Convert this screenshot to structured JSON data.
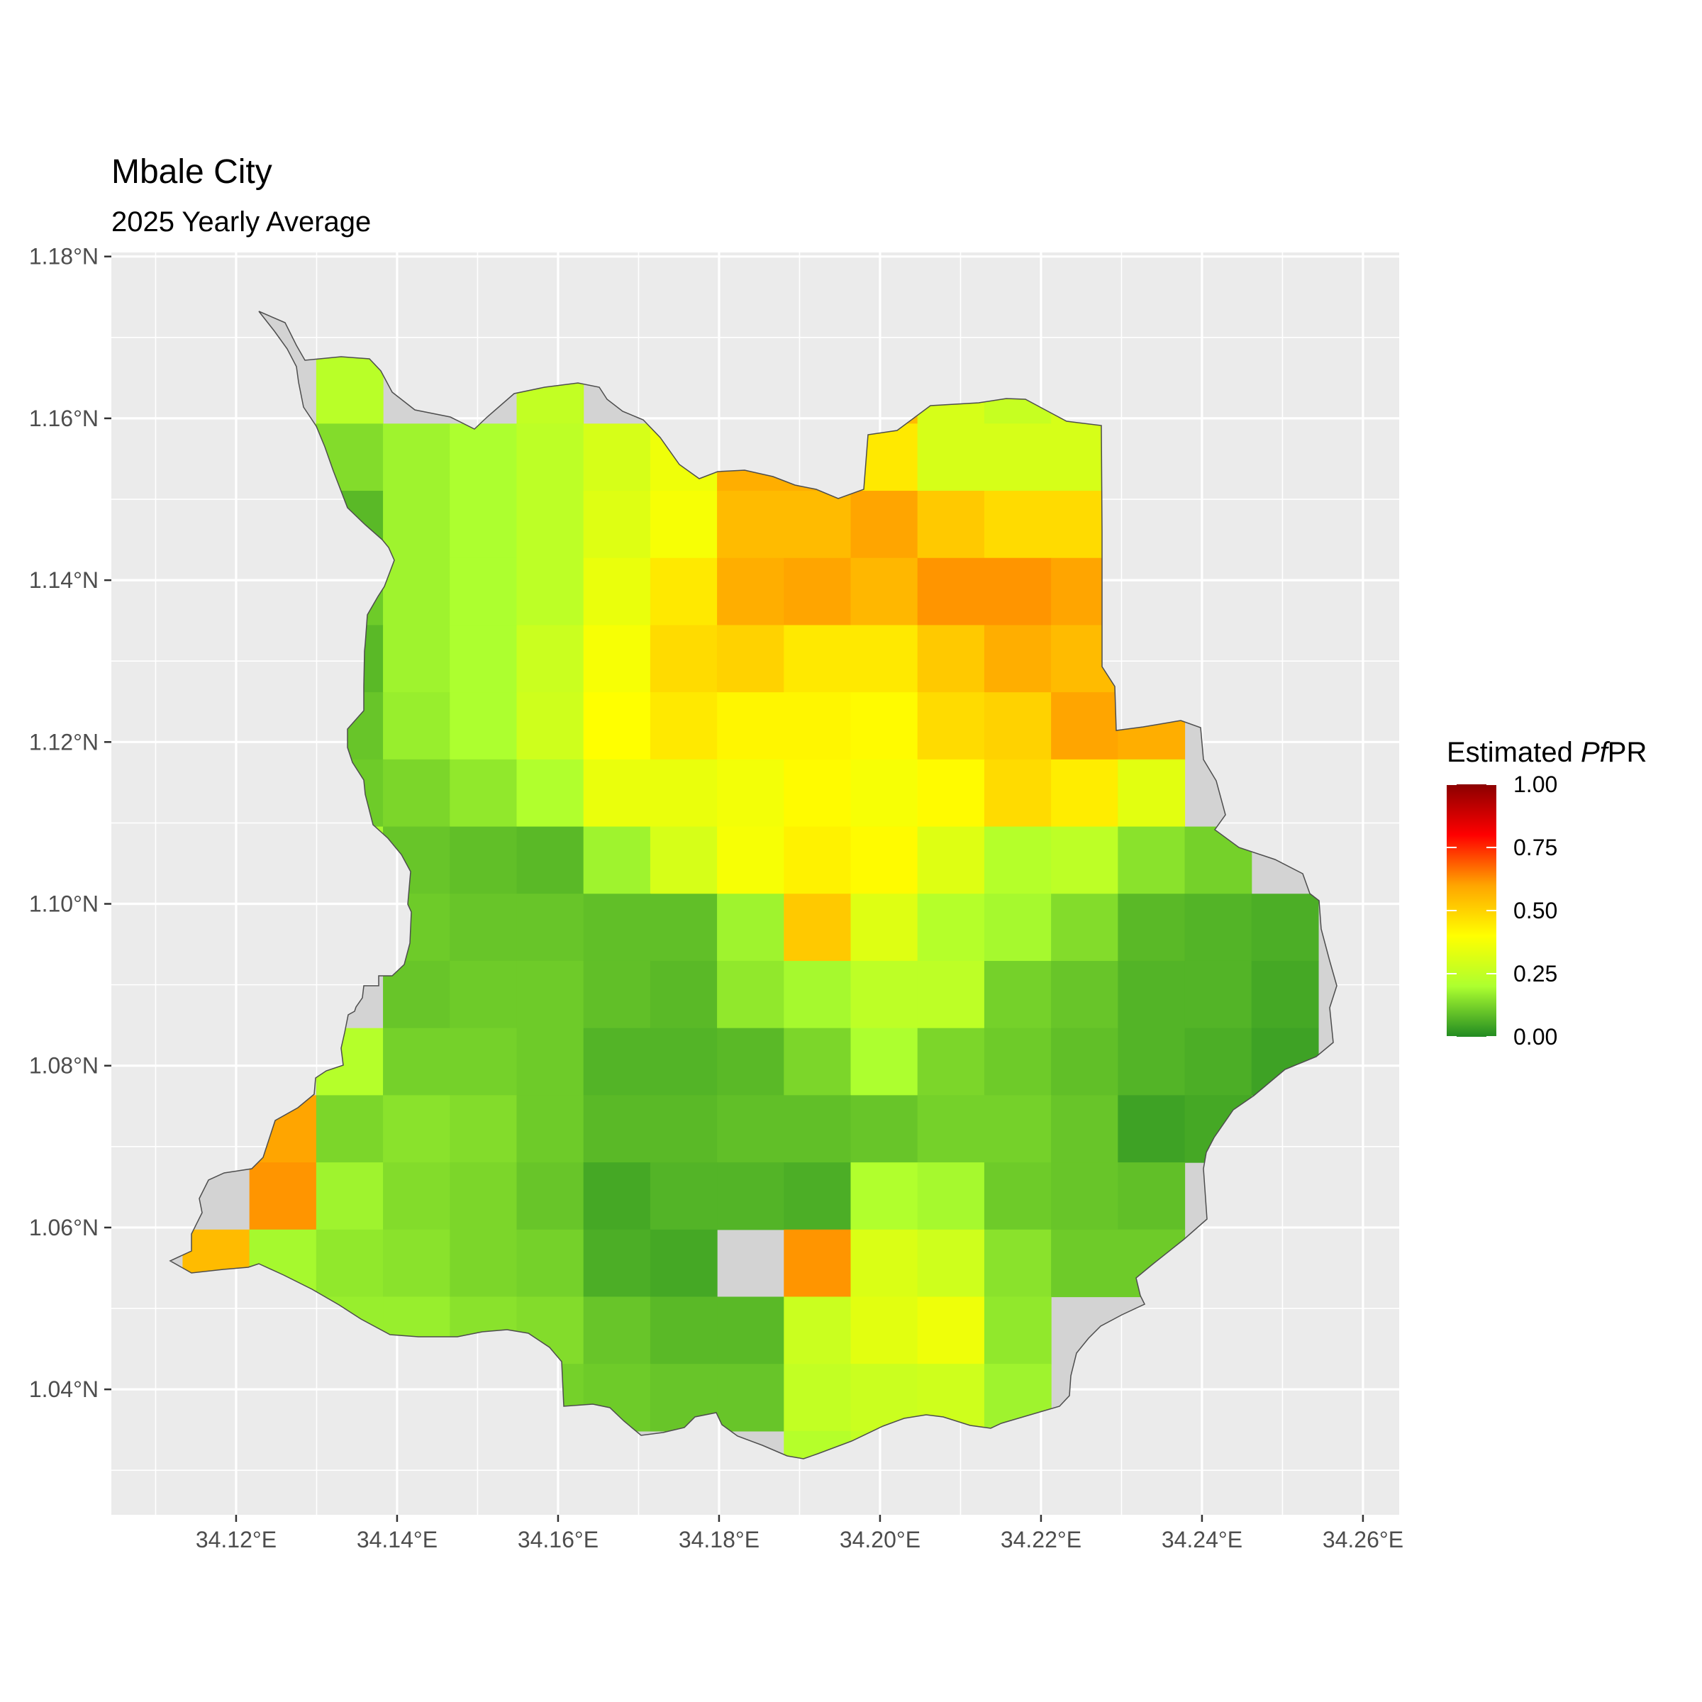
{
  "title": "Mbale City",
  "subtitle": "2025 Yearly Average",
  "legend": {
    "title_prefix": "Estimated ",
    "title_italic": "Pf",
    "title_suffix": "PR",
    "ticks": [
      "1.00",
      "0.75",
      "0.50",
      "0.25",
      "0.00"
    ],
    "colors": [
      "#228B22",
      "#ADFF2F",
      "#FFFF00",
      "#FFA500",
      "#FF0000",
      "#8B0000"
    ]
  },
  "colors": {
    "panel": "#EBEBEB",
    "grid": "#FFFFFF",
    "no_data": "#D3D3D3",
    "outline": "#4D4D4D"
  },
  "axes": {
    "x_ticks": [
      "34.12°E",
      "34.14°E",
      "34.16°E",
      "34.18°E",
      "34.20°E",
      "34.22°E",
      "34.24°E",
      "34.26°E"
    ],
    "y_ticks": [
      "1.18°N",
      "1.16°N",
      "1.14°N",
      "1.12°N",
      "1.10°N",
      "1.08°N",
      "1.06°N",
      "1.04°N"
    ]
  },
  "chart_data": {
    "type": "heatmap",
    "value_name": "Estimated PfPR",
    "color_range": [
      0,
      1
    ],
    "xlim": [
      34.1045,
      34.2645
    ],
    "ylim": [
      1.0245,
      1.1805
    ],
    "cell_size": 0.0083,
    "col_x0": 34.1175,
    "row_y0": 1.1635,
    "cells": [
      [
        null,
        null,
        0.23,
        null,
        null,
        0.25,
        null,
        null,
        null,
        null,
        0.55,
        0.3,
        0.26,
        0.3,
        null,
        null,
        null
      ],
      [
        null,
        0.24,
        0.14,
        0.18,
        0.2,
        0.24,
        0.3,
        0.36,
        0.58,
        0.58,
        0.45,
        0.3,
        0.3,
        0.3,
        null,
        null,
        null
      ],
      [
        null,
        null,
        0.08,
        0.18,
        0.2,
        0.24,
        0.32,
        0.38,
        0.55,
        0.55,
        0.6,
        0.52,
        0.48,
        0.48,
        null,
        null,
        null
      ],
      [
        null,
        null,
        0.11,
        0.18,
        0.2,
        0.24,
        0.35,
        0.45,
        0.58,
        0.6,
        0.56,
        0.62,
        0.62,
        0.6,
        null,
        null,
        null
      ],
      [
        null,
        null,
        0.08,
        0.18,
        0.2,
        0.27,
        0.38,
        0.48,
        0.5,
        0.45,
        0.45,
        0.52,
        0.58,
        0.55,
        null,
        null,
        null
      ],
      [
        null,
        null,
        0.1,
        0.17,
        0.2,
        0.28,
        0.4,
        0.45,
        0.42,
        0.42,
        0.41,
        0.48,
        0.5,
        0.6,
        0.58,
        null,
        null
      ],
      [
        null,
        null,
        0.11,
        0.13,
        0.16,
        0.21,
        0.35,
        0.35,
        0.37,
        0.41,
        0.38,
        0.41,
        0.48,
        0.44,
        0.33,
        null,
        null
      ],
      [
        null,
        null,
        0.19,
        0.1,
        0.09,
        0.08,
        0.18,
        0.3,
        0.38,
        0.43,
        0.41,
        0.32,
        0.22,
        0.24,
        0.15,
        0.12,
        null
      ],
      [
        null,
        null,
        null,
        0.11,
        0.1,
        0.1,
        0.09,
        0.09,
        0.18,
        0.52,
        0.32,
        0.22,
        0.19,
        0.14,
        0.08,
        0.07,
        0.06
      ],
      [
        null,
        null,
        null,
        0.1,
        0.11,
        0.11,
        0.09,
        0.08,
        0.16,
        0.19,
        0.24,
        0.24,
        0.12,
        0.1,
        0.07,
        0.07,
        0.05
      ],
      [
        null,
        null,
        0.22,
        0.12,
        0.12,
        0.11,
        0.07,
        0.07,
        0.08,
        0.13,
        0.2,
        0.13,
        0.11,
        0.09,
        0.07,
        0.06,
        0.04
      ],
      [
        null,
        0.6,
        0.13,
        0.15,
        0.14,
        0.11,
        0.08,
        0.08,
        0.09,
        0.09,
        0.1,
        0.12,
        0.12,
        0.1,
        0.04,
        0.05,
        null
      ],
      [
        null,
        0.62,
        0.18,
        0.14,
        0.13,
        0.1,
        0.05,
        0.07,
        0.07,
        0.06,
        0.21,
        0.19,
        0.11,
        0.1,
        0.09,
        null,
        null
      ],
      [
        0.55,
        0.19,
        0.16,
        0.15,
        0.13,
        0.12,
        0.06,
        0.05,
        null,
        0.62,
        0.31,
        0.28,
        0.15,
        0.11,
        0.11,
        null,
        null
      ],
      [
        null,
        null,
        0.17,
        0.17,
        0.15,
        0.14,
        0.1,
        0.08,
        0.08,
        0.27,
        0.33,
        0.36,
        0.16,
        null,
        null,
        null,
        null
      ],
      [
        null,
        null,
        null,
        null,
        null,
        0.12,
        0.11,
        0.1,
        0.1,
        0.25,
        0.27,
        0.28,
        0.18,
        null,
        null,
        null,
        null
      ],
      [
        null,
        null,
        null,
        null,
        null,
        null,
        null,
        null,
        null,
        0.22,
        0.25,
        null,
        null,
        null,
        null,
        null,
        null
      ]
    ]
  }
}
